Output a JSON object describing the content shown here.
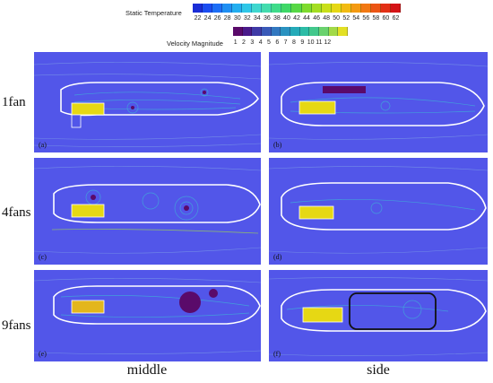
{
  "legends": {
    "temperature": {
      "title": "Static Temperature",
      "ticks": [
        "22",
        "24",
        "26",
        "28",
        "30",
        "32",
        "34",
        "36",
        "38",
        "40",
        "42",
        "44",
        "46",
        "48",
        "50",
        "52",
        "54",
        "56",
        "58",
        "60",
        "62"
      ],
      "colors": [
        "#1a2dd6",
        "#1b4df0",
        "#1d6ef6",
        "#1f8ff3",
        "#23aef0",
        "#2fc7e8",
        "#3fd7cf",
        "#43dcae",
        "#3fdc8a",
        "#3fd867",
        "#57d846",
        "#7edb2e",
        "#a4de22",
        "#c9e019",
        "#e6d814",
        "#f2bb12",
        "#f49a11",
        "#f27812",
        "#ec5514",
        "#e33015",
        "#d41416"
      ]
    },
    "velocity": {
      "title": "Velocity Magnitude",
      "ticks": [
        "1",
        "2",
        "3",
        "4",
        "5",
        "6",
        "7",
        "8",
        "9",
        "10",
        "11",
        "12"
      ],
      "colors": [
        "#5a0a6a",
        "#4a1a8a",
        "#3f3aa6",
        "#3a5ab8",
        "#3278c0",
        "#2a92c0",
        "#24aab8",
        "#2cbca6",
        "#42c88c",
        "#6ad26e",
        "#a2da48",
        "#e3e024"
      ]
    }
  },
  "rows": [
    "1fan",
    "4fans",
    "9fans"
  ],
  "columns": [
    "middle",
    "side"
  ],
  "panels": [
    {
      "label": "(a)",
      "column": "middle",
      "row": "1fan"
    },
    {
      "label": "(b)",
      "column": "side",
      "row": "1fan"
    },
    {
      "label": "(c)",
      "column": "middle",
      "row": "4fans"
    },
    {
      "label": "(d)",
      "column": "side",
      "row": "4fans"
    },
    {
      "label": "(e)",
      "column": "middle",
      "row": "9fans"
    },
    {
      "label": "(f)",
      "column": "side",
      "row": "9fans"
    }
  ]
}
